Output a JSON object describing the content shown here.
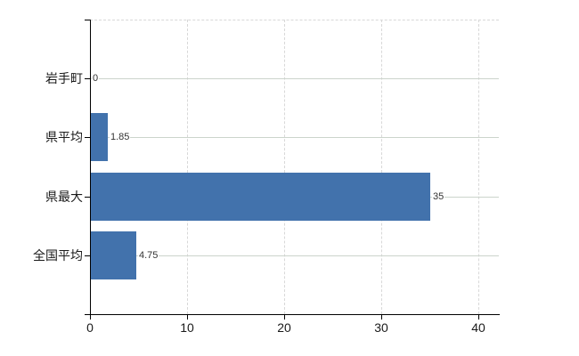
{
  "chart_data": {
    "type": "bar",
    "orientation": "horizontal",
    "title": "",
    "xlabel": "",
    "ylabel": "",
    "categories": [
      "岩手町",
      "県平均",
      "県最大",
      "全国平均"
    ],
    "values": [
      0,
      1.85,
      35,
      4.75
    ],
    "value_labels": [
      "0",
      "1.85",
      "35",
      "4.75"
    ],
    "x_tick_values": [
      0,
      10,
      20,
      30,
      40
    ],
    "x_tick_labels": [
      "0",
      "10",
      "20",
      "30",
      "40"
    ],
    "xlim": [
      0,
      42.1
    ],
    "grid": true,
    "legend_position": "none",
    "colors": {
      "bar": "#4272ac",
      "axis": "#000000",
      "grid_dashed": "#d8d8d8",
      "grid_row": "#ccd4cc",
      "category_label": "#1a1a1a",
      "value_label": "#333333",
      "background": "#ffffff"
    }
  }
}
